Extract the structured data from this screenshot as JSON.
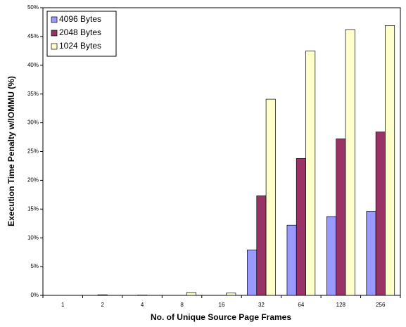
{
  "chart_data": {
    "type": "bar",
    "x_label": "No. of Unique Source Page Frames",
    "y_label": "Execution Time Penalty w/IOMMU (%)",
    "categories": [
      "1",
      "2",
      "4",
      "8",
      "16",
      "32",
      "64",
      "128",
      "256"
    ],
    "series": [
      {
        "name": "4096 Bytes",
        "color": "#9999ff",
        "values": [
          0,
          0,
          0,
          0,
          0,
          7.9,
          12.2,
          13.7,
          14.6
        ]
      },
      {
        "name": "2048 Bytes",
        "color": "#993366",
        "values": [
          0,
          0.1,
          0.05,
          0,
          0,
          17.3,
          23.8,
          27.2,
          28.4
        ]
      },
      {
        "name": "1024 Bytes",
        "color": "#ffffcc",
        "values": [
          0,
          0,
          0,
          0.5,
          0.4,
          34.1,
          42.5,
          46.2,
          46.9
        ]
      }
    ],
    "ylim": [
      0,
      50
    ],
    "yticks": [
      {
        "value": 0,
        "label": "0%"
      },
      {
        "value": 5,
        "label": "5%"
      },
      {
        "value": 10,
        "label": "10%"
      },
      {
        "value": 15,
        "label": "15%"
      },
      {
        "value": 20,
        "label": "20%"
      },
      {
        "value": 25,
        "label": "25%"
      },
      {
        "value": 30,
        "label": "30%"
      },
      {
        "value": 35,
        "label": "35%"
      },
      {
        "value": 40,
        "label": "40%"
      },
      {
        "value": 45,
        "label": "45%"
      },
      {
        "value": 50,
        "label": "50%"
      }
    ],
    "legend": "upper-left"
  }
}
